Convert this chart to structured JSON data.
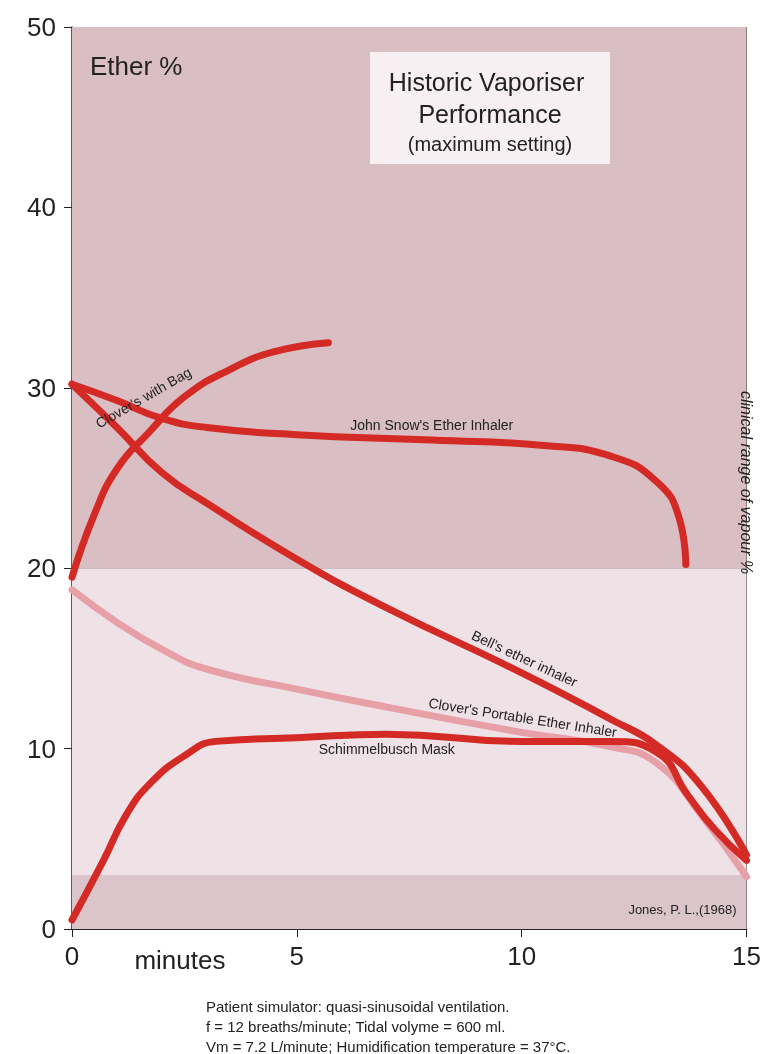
{
  "chart_data": {
    "type": "line",
    "title": "Historic Vaporiser Performance",
    "subtitle": "(maximum setting)",
    "xlabel": "minutes",
    "ylabel": "Ether %",
    "xlim": [
      0,
      15
    ],
    "xticks": [
      0,
      5,
      10,
      15
    ],
    "ylim": [
      0,
      50
    ],
    "yticks": [
      0,
      10,
      20,
      30,
      40,
      50
    ],
    "grid": true,
    "marker": "none",
    "line_style": "solid",
    "bands": [
      {
        "axis": "y",
        "from": 20,
        "to": 50,
        "label": null,
        "color": "#d9bec3"
      },
      {
        "axis": "y",
        "from": 3,
        "to": 20,
        "label": "clinical range of vapour %",
        "color": "#efe2e7"
      },
      {
        "axis": "y",
        "from": 0,
        "to": 3,
        "label": null,
        "color": "#dcc5ca"
      }
    ],
    "series": [
      {
        "name": "Clover's with Bag",
        "color": "#d42a25",
        "x": [
          0,
          0.5,
          1,
          1.7,
          2.5,
          3.5,
          4.5,
          5.7
        ],
        "values": [
          19.5,
          23,
          25.5,
          27.5,
          29.5,
          31,
          32,
          32.5
        ]
      },
      {
        "name": "John Snow's Ether Inhaler",
        "color": "#d42a25",
        "x": [
          0,
          1,
          2,
          3,
          5,
          8,
          10.5,
          12,
          13,
          13.5,
          13.65
        ],
        "values": [
          30.2,
          29.3,
          28.3,
          27.8,
          27.4,
          27.1,
          26.8,
          26.2,
          24.8,
          22.8,
          20.2
        ]
      },
      {
        "name": "Bell's ether inhaler",
        "color": "#d42a25",
        "x": [
          0,
          1,
          2,
          3,
          5,
          7,
          10,
          12,
          13,
          14,
          15
        ],
        "values": [
          30.2,
          27.8,
          25.3,
          23.6,
          20.5,
          17.8,
          14.2,
          11.6,
          10.2,
          7.9,
          4.1
        ]
      },
      {
        "name": "Clover's Portable Ether Inhaler",
        "color": "#e8a0a8",
        "x": [
          0,
          1,
          2,
          3,
          5,
          7,
          10,
          12,
          13,
          14,
          15
        ],
        "values": [
          18.8,
          17,
          15.5,
          14.4,
          13.3,
          12.3,
          10.9,
          10.1,
          9.2,
          6.3,
          2.9
        ]
      },
      {
        "name": "Schimmelbusch Mask",
        "color": "#d42a25",
        "x": [
          0,
          0.7,
          1.2,
          1.75,
          2.5,
          3.2,
          5,
          7,
          10,
          12,
          13,
          13.7,
          14.3,
          15
        ],
        "values": [
          0.5,
          3.8,
          6.3,
          8.1,
          9.6,
          10.4,
          10.6,
          10.8,
          10.4,
          10.4,
          9.8,
          7.4,
          5.5,
          3.8
        ]
      }
    ],
    "annotations": [
      "Jones, P. L.,(1968)",
      "Patient simulator: quasi-sinusoidal ventilation.",
      "f = 12 breaths/minute; Tidal volyme = 600 ml.",
      "Vm = 7.2 L/minute; Humidification temperature = 37°C."
    ]
  }
}
